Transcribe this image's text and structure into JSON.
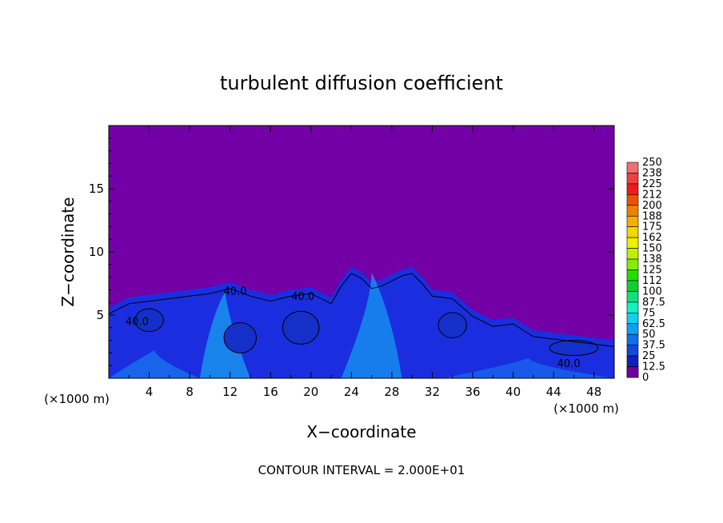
{
  "chart_data": {
    "type": "heatmap",
    "title": "turbulent diffusion coefficient",
    "xlabel": "X−coordinate",
    "ylabel": "Z−coordinate",
    "x_unit_left": "(×1000 m)",
    "x_unit_right": "(×1000 m)",
    "footer": "CONTOUR INTERVAL = 2.000E+01",
    "xlim": [
      0,
      50
    ],
    "ylim": [
      0,
      20
    ],
    "x_ticks": [
      "4",
      "8",
      "12",
      "16",
      "20",
      "24",
      "28",
      "32",
      "36",
      "40",
      "44",
      "48"
    ],
    "y_ticks": [
      "5",
      "10",
      "15"
    ],
    "x_tick_values": [
      4,
      8,
      12,
      16,
      20,
      24,
      28,
      32,
      36,
      40,
      44,
      48
    ],
    "y_tick_values": [
      5,
      10,
      15
    ],
    "contour_labels": [
      {
        "text": "40.0",
        "x": 12.5,
        "y": 6.6
      },
      {
        "text": "40.0",
        "x": 19.2,
        "y": 6.2
      },
      {
        "text": "40.0",
        "x": 2.8,
        "y": 4.2
      },
      {
        "text": "40.0",
        "x": 45.5,
        "y": 0.9
      }
    ],
    "colorbar": {
      "labels": [
        "250",
        "238",
        "225",
        "212",
        "200",
        "188",
        "175",
        "162",
        "150",
        "138",
        "125",
        "112",
        "100",
        "87.5",
        "75",
        "62.5",
        "50",
        "37.5",
        "25",
        "12.5",
        "0"
      ],
      "colors": [
        "#f07070",
        "#f04040",
        "#f01c1c",
        "#f05000",
        "#f08000",
        "#f0b000",
        "#f0d800",
        "#f0f000",
        "#c0f000",
        "#80f000",
        "#20e000",
        "#10d030",
        "#10e080",
        "#10f0c0",
        "#10d0f0",
        "#10a0f0",
        "#1070f0",
        "#1048e0",
        "#1020c0",
        "#2010a0",
        "#7000a0"
      ]
    },
    "background_color": "#7300a6"
  }
}
